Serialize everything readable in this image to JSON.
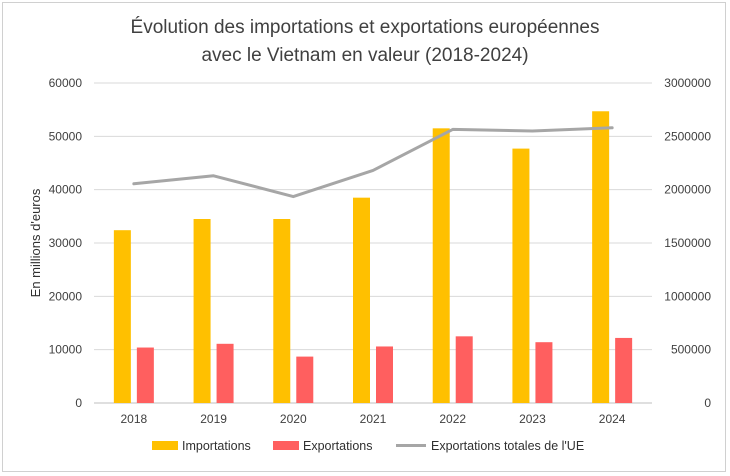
{
  "chart_data": {
    "type": "bar+line",
    "title": {
      "line1": "Évolution des importations et exportations européennes",
      "line2": "avec le Vietnam en valeur (2018-2024)"
    },
    "categories": [
      "2018",
      "2019",
      "2020",
      "2021",
      "2022",
      "2023",
      "2024"
    ],
    "series": [
      {
        "name": "Importations",
        "type": "bar",
        "axis": "left",
        "color": "#FFC000",
        "values": [
          32400,
          34500,
          34500,
          38500,
          51500,
          47700,
          54700
        ]
      },
      {
        "name": "Exportations",
        "type": "bar",
        "axis": "left",
        "color": "#FF5F5F",
        "values": [
          10400,
          11100,
          8700,
          10600,
          12500,
          11400,
          12200
        ]
      },
      {
        "name": "Exportations totales de l'UE",
        "type": "line",
        "axis": "right",
        "color": "#A6A6A6",
        "values": [
          2055000,
          2130000,
          1935000,
          2180000,
          2565000,
          2550000,
          2580000
        ]
      }
    ],
    "ylabel": "En millions d'euros",
    "ylim": [
      0,
      60000
    ],
    "y_ticks": [
      "0",
      "10000",
      "20000",
      "30000",
      "40000",
      "50000",
      "60000"
    ],
    "y2lim": [
      0,
      3000000
    ],
    "y2_ticks": [
      "0",
      "500000",
      "1000000",
      "1500000",
      "2000000",
      "2500000",
      "3000000"
    ],
    "grid": true,
    "legend_position": "bottom"
  }
}
